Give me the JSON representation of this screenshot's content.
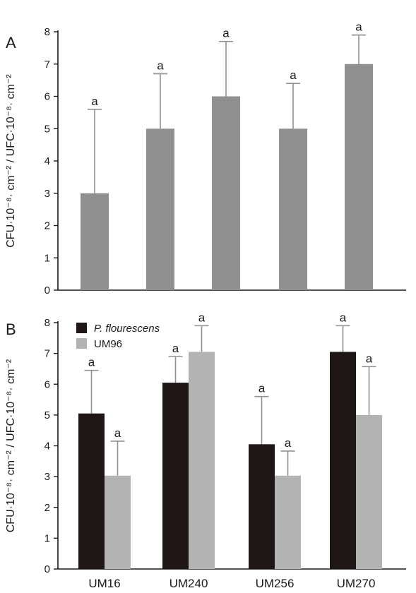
{
  "chart_data": [
    {
      "panel": "A",
      "type": "bar",
      "ylabel": "CFU·10⁻⁸· cm⁻² / UFC·10⁻⁸· cm⁻²",
      "ylim": [
        0,
        8
      ],
      "yticks": [
        "0",
        "1",
        "2",
        "3",
        "4",
        "5",
        "6",
        "7",
        "8"
      ],
      "categories": [
        "",
        "",
        "",
        "",
        ""
      ],
      "series": [
        {
          "color": "#8f8f8f",
          "values": [
            3,
            5,
            6,
            5,
            7
          ],
          "errors": [
            2.6,
            1.7,
            1.7,
            1.4,
            0.9
          ],
          "labels": [
            "a",
            "a",
            "a",
            "a",
            "a"
          ]
        }
      ]
    },
    {
      "panel": "B",
      "type": "bar",
      "ylabel": "CFU·10⁻⁸· cm⁻² / UFC·10⁻⁸· cm⁻²",
      "ylim": [
        0,
        8
      ],
      "yticks": [
        "0",
        "1",
        "2",
        "3",
        "4",
        "5",
        "6",
        "7",
        "8"
      ],
      "categories": [
        "UM16",
        "UM240",
        "UM256",
        "UM270"
      ],
      "legend_position": "top-left",
      "series": [
        {
          "name": "P. flourescens",
          "color": "#1f1715",
          "values": [
            5.05,
            6.05,
            4.05,
            7.05
          ],
          "errors": [
            1.4,
            0.85,
            1.55,
            0.85
          ],
          "labels": [
            "a",
            "a",
            "a",
            "a"
          ]
        },
        {
          "name": "UM96",
          "color": "#b3b3b3",
          "values": [
            3.03,
            7.05,
            3.03,
            5.0
          ],
          "errors": [
            1.12,
            0.85,
            0.8,
            1.57
          ],
          "labels": [
            "a",
            "a",
            "a",
            "a"
          ]
        }
      ]
    }
  ]
}
